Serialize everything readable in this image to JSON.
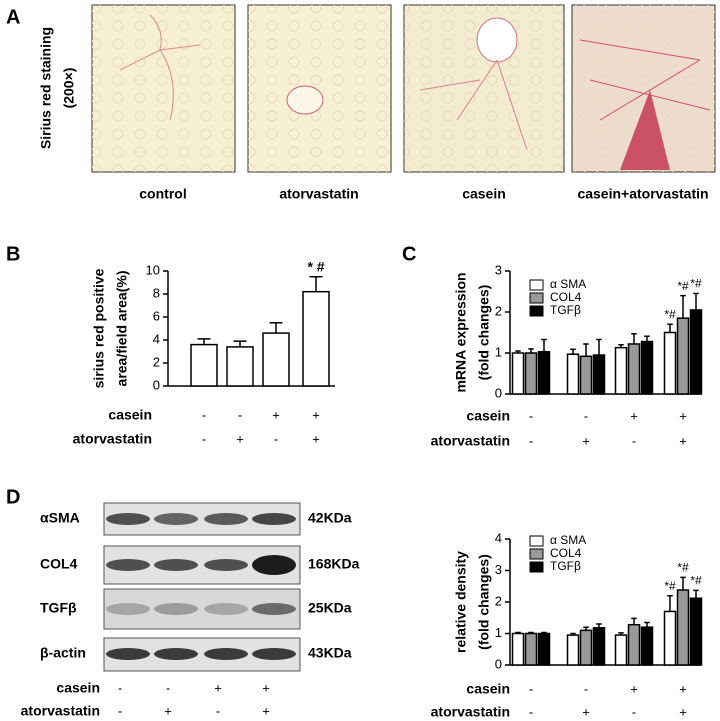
{
  "panel_labels": [
    "A",
    "B",
    "C",
    "D"
  ],
  "panel_a": {
    "ylabel": [
      "Sirius red staining",
      "(200×)"
    ],
    "captions": [
      "control",
      "atorvastatin",
      "casein",
      "casein+atorvastatin"
    ]
  },
  "chart_data": [
    {
      "type": "bar",
      "ylabel": [
        "sirius red positive",
        "area/field area(%)"
      ],
      "ylim": [
        0,
        10
      ],
      "yticks": [
        0,
        2,
        4,
        6,
        8,
        10
      ],
      "categories": [
        null,
        null,
        null,
        null
      ],
      "series": [
        {
          "name": null,
          "color": "#ffffff",
          "values": [
            3.6,
            3.4,
            4.6,
            8.2
          ],
          "errors": [
            0.5,
            0.5,
            0.9,
            1.3
          ],
          "significance": [
            null,
            null,
            null,
            "* #"
          ]
        }
      ],
      "conditions": [
        {
          "name": "casein",
          "signs": [
            "-",
            "-",
            "+",
            "+"
          ]
        },
        {
          "name": "atorvastatin",
          "signs": [
            "-",
            "+",
            "-",
            "+"
          ]
        }
      ]
    },
    {
      "type": "bar",
      "ylabel": [
        "mRNA expression",
        "(fold changes)"
      ],
      "ylim": [
        0,
        3
      ],
      "yticks": [
        0,
        1,
        2,
        3
      ],
      "categories": [
        null,
        null,
        null,
        null
      ],
      "series": [
        {
          "name": "α SMA",
          "color": "#ffffff",
          "values": [
            1.0,
            0.97,
            1.13,
            1.5
          ],
          "errors": [
            0.05,
            0.12,
            0.07,
            0.2
          ],
          "significance": [
            null,
            null,
            null,
            "*#"
          ]
        },
        {
          "name": "COL4",
          "color": "#999999",
          "values": [
            1.0,
            0.92,
            1.22,
            1.85
          ],
          "errors": [
            0.1,
            0.3,
            0.25,
            0.55
          ],
          "significance": [
            null,
            null,
            null,
            "*#"
          ]
        },
        {
          "name": "TGFβ",
          "color": "#000000",
          "values": [
            1.03,
            0.95,
            1.28,
            2.05
          ],
          "errors": [
            0.3,
            0.38,
            0.13,
            0.4
          ],
          "significance": [
            null,
            null,
            null,
            "*#"
          ]
        }
      ],
      "conditions": [
        {
          "name": "casein",
          "signs": [
            "-",
            "-",
            "+",
            "+"
          ]
        },
        {
          "name": "atorvastatin",
          "signs": [
            "-",
            "+",
            "-",
            "+"
          ]
        }
      ]
    },
    {
      "type": "bar",
      "ylabel": [
        "relative density",
        "(fold changes)"
      ],
      "ylim": [
        0,
        4
      ],
      "yticks": [
        0,
        1,
        2,
        3,
        4
      ],
      "categories": [
        null,
        null,
        null,
        null
      ],
      "series": [
        {
          "name": "α SMA",
          "color": "#ffffff",
          "values": [
            1.0,
            0.95,
            0.95,
            1.7
          ],
          "errors": [
            0.03,
            0.05,
            0.07,
            0.5
          ],
          "significance": [
            null,
            null,
            null,
            "*#"
          ]
        },
        {
          "name": "COL4",
          "color": "#999999",
          "values": [
            1.0,
            1.1,
            1.28,
            2.38
          ],
          "errors": [
            0.03,
            0.1,
            0.2,
            0.4
          ],
          "significance": [
            null,
            null,
            null,
            "*#"
          ]
        },
        {
          "name": "TGFβ",
          "color": "#000000",
          "values": [
            1.0,
            1.18,
            1.2,
            2.12
          ],
          "errors": [
            0.03,
            0.12,
            0.15,
            0.25
          ],
          "significance": [
            null,
            null,
            null,
            "*#"
          ]
        }
      ],
      "conditions": [
        {
          "name": "casein",
          "signs": [
            "-",
            "-",
            "+",
            "+"
          ]
        },
        {
          "name": "atorvastatin",
          "signs": [
            "-",
            "+",
            "-",
            "+"
          ]
        }
      ]
    }
  ],
  "blot": {
    "proteins": [
      "αSMA",
      "COL4",
      "TGFβ",
      "β-actin"
    ],
    "sizes": [
      "42KDa",
      "168KDa",
      "25KDa",
      "43KDa"
    ],
    "conditions": [
      {
        "name": "casein",
        "signs": [
          "-",
          "-",
          "+",
          "+"
        ]
      },
      {
        "name": "atorvastatin",
        "signs": [
          "-",
          "+",
          "-",
          "+"
        ]
      }
    ]
  }
}
